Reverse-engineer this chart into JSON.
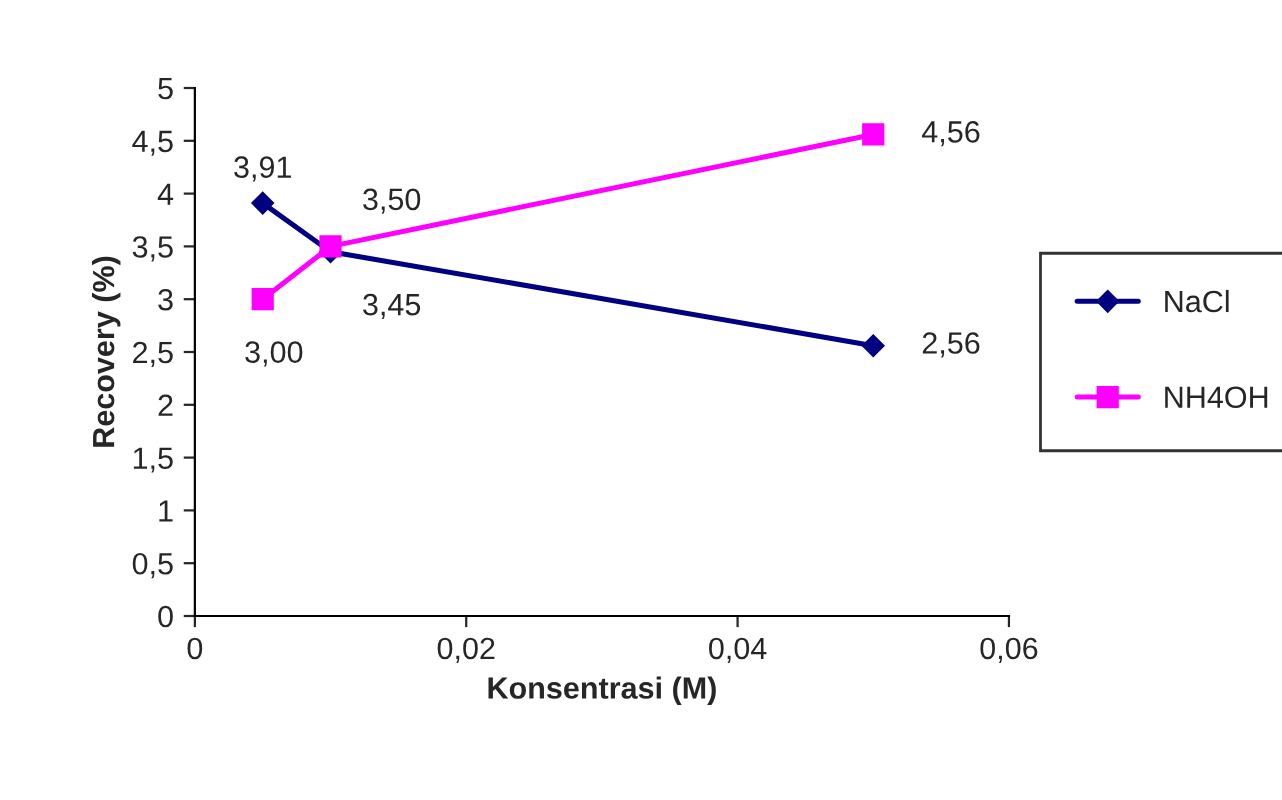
{
  "chart_data": {
    "type": "line",
    "xlabel": "Konsentrasi (M)",
    "ylabel": "Recovery (%)",
    "xlim": [
      0,
      0.06
    ],
    "xticks": [
      0,
      {
        "value": 0.02,
        "label": "0,02"
      },
      {
        "value": 0.04,
        "label": "0,04"
      },
      {
        "value": 0.06,
        "label": "0,06"
      }
    ],
    "ylim": [
      0,
      5
    ],
    "yticks": [
      0,
      {
        "value": 0.5,
        "label": "0,5"
      },
      1,
      {
        "value": 1.5,
        "label": "1,5"
      },
      2,
      {
        "value": 2.5,
        "label": "2,5"
      },
      3,
      {
        "value": 3.5,
        "label": "3,5"
      },
      4,
      {
        "value": 4.5,
        "label": "4,5"
      },
      5
    ],
    "grid": false,
    "legend": "right",
    "series": [
      {
        "name": "NaCl",
        "color": "#000080",
        "marker": "diamond",
        "x": [
          0.005,
          0.01,
          0.05
        ],
        "values": [
          3.91,
          3.45,
          2.56
        ],
        "value_labels": [
          "3,91",
          "3,45",
          "2,56"
        ]
      },
      {
        "name": "NH4OH",
        "color": "#ff00ff",
        "marker": "square",
        "x": [
          0.005,
          0.01,
          0.05
        ],
        "values": [
          3.0,
          3.5,
          4.56
        ],
        "value_labels": [
          "3,00",
          "3,50",
          "4,56"
        ]
      }
    ]
  }
}
